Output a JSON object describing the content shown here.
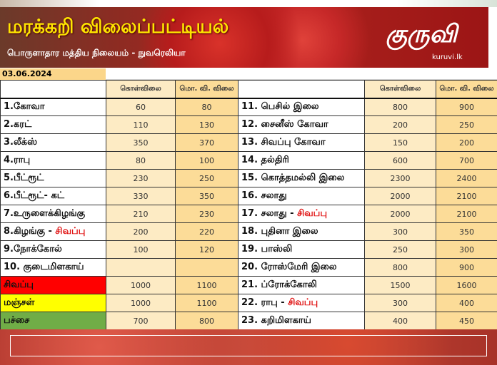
{
  "header": {
    "title": "மரக்கறி விலைப்பட்டியல்",
    "subtitle": "பொருளாதார மத்திய நிலையம் - நுவரெலியா",
    "logo_text": "குருவி",
    "logo_url": "kuruvi.lk"
  },
  "date": "03.06.2024",
  "columns": {
    "wholesale": "கொள்விலை",
    "retail": "மொ. வி. விலை"
  },
  "colors": {
    "red": "#ff0000",
    "yellow": "#ffff00",
    "green": "#70ad47",
    "accent": "#e01010"
  },
  "left_rows": [
    {
      "name": "1.கோவா",
      "suffix": "",
      "wholesale": "60",
      "retail": "80"
    },
    {
      "name": "2.கரட்",
      "suffix": "",
      "wholesale": "110",
      "retail": "130"
    },
    {
      "name": "3.லீக்ஸ்",
      "suffix": "",
      "wholesale": "350",
      "retail": "370"
    },
    {
      "name": "4.ராபு",
      "suffix": "",
      "wholesale": "80",
      "retail": "100"
    },
    {
      "name": "5.பீட்ரூட்",
      "suffix": "",
      "wholesale": "230",
      "retail": "250"
    },
    {
      "name": "6.பீட்ரூட்- கட்",
      "suffix": "",
      "wholesale": "330",
      "retail": "350"
    },
    {
      "name": "7.உருளைக்கிழங்கு",
      "suffix": "",
      "wholesale": "210",
      "retail": "230"
    },
    {
      "name": "8.கிழங்கு - ",
      "suffix": "சிவப்பு",
      "wholesale": "200",
      "retail": "220"
    },
    {
      "name": "9.நோக்கோல்",
      "suffix": "",
      "wholesale": "100",
      "retail": "120"
    },
    {
      "name": "10. குடைமிளகாய்",
      "suffix": "",
      "wholesale": "",
      "retail": ""
    },
    {
      "name": "சிவப்பு",
      "suffix": "",
      "wholesale": "1000",
      "retail": "1100"
    },
    {
      "name": "மஞ்சள்",
      "suffix": "",
      "wholesale": "1000",
      "retail": "1100"
    },
    {
      "name": "பச்சை",
      "suffix": "",
      "wholesale": "700",
      "retail": "800"
    }
  ],
  "right_rows": [
    {
      "name": "11. பெசில் இலை",
      "suffix": "",
      "wholesale": "800",
      "retail": "900"
    },
    {
      "name": "12. சைனீஸ் கோவா",
      "suffix": "",
      "wholesale": "200",
      "retail": "250"
    },
    {
      "name": "13. சிவப்பு கோவா",
      "suffix": "",
      "wholesale": "150",
      "retail": "200"
    },
    {
      "name": "14. தல்திரி",
      "suffix": "",
      "wholesale": "600",
      "retail": "700"
    },
    {
      "name": "15. கொத்தமல்லி இலை",
      "suffix": "",
      "wholesale": "2300",
      "retail": "2400"
    },
    {
      "name": "16. சலாது",
      "suffix": "",
      "wholesale": "2000",
      "retail": "2100"
    },
    {
      "name": "17. சலாது - ",
      "suffix": "சிவப்பு",
      "wholesale": "2000",
      "retail": "2100"
    },
    {
      "name": "18. புதினா இலை",
      "suffix": "",
      "wholesale": "300",
      "retail": "350"
    },
    {
      "name": "19. பாஸ்லி",
      "suffix": "",
      "wholesale": "250",
      "retail": "300"
    },
    {
      "name": "20. ரோஸ்மேரி இலை",
      "suffix": "",
      "wholesale": "800",
      "retail": "900"
    },
    {
      "name": "21. ப்ரோக்கோலி",
      "suffix": "",
      "wholesale": "1500",
      "retail": "1600"
    },
    {
      "name": "22. ராபு - ",
      "suffix": "சிவப்பு",
      "wholesale": "300",
      "retail": "400"
    },
    {
      "name": "23. கறிமிளகாய்",
      "suffix": "",
      "wholesale": "400",
      "retail": "450"
    }
  ]
}
